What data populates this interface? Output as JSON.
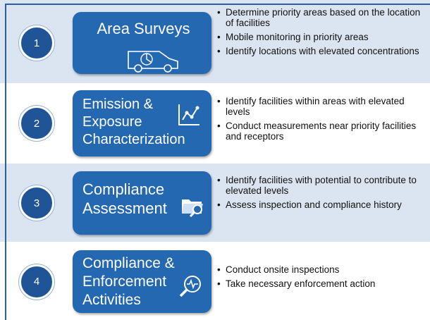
{
  "steps": [
    {
      "number": "1",
      "title": [
        "Area Surveys"
      ],
      "bullets": [
        "Determine priority areas based on the location of facilities",
        "Mobile monitoring in priority areas",
        "Identify locations with elevated concentrations"
      ]
    },
    {
      "number": "2",
      "title": [
        "Emission &",
        "Exposure",
        "Characterization"
      ],
      "bullets": [
        "Identify facilities within areas with elevated levels",
        "Conduct measurements near priority facilities and receptors"
      ]
    },
    {
      "number": "3",
      "title": [
        "Compliance",
        "Assessment"
      ],
      "bullets": [
        "Identify facilities with potential to contribute to elevated levels",
        "Assess inspection and compliance history"
      ]
    },
    {
      "number": "4",
      "title": [
        "Compliance &",
        "Enforcement",
        "Activities"
      ],
      "bullets": [
        "Conduct onsite inspections",
        "Take necessary enforcement action"
      ]
    }
  ]
}
